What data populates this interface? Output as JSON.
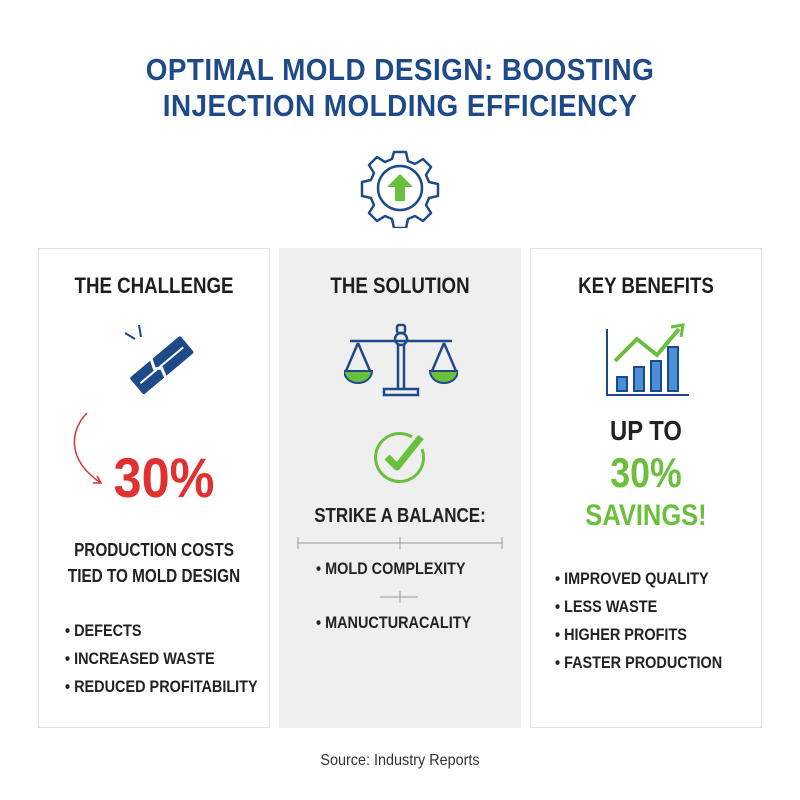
{
  "title": {
    "line1": "OPTIMAL MOLD DESIGN: BOOSTING",
    "line2": "INJECTION MOLDING EFFICIENCY"
  },
  "icons": {
    "header": "gear-up-arrow-icon",
    "challenge": "broken-mold-icon",
    "solution": "balance-scale-icon",
    "solution_check": "check-circle-icon",
    "benefits": "bar-chart-growth-icon"
  },
  "colors": {
    "title": "#1f4a8a",
    "red": "#e03030",
    "green": "#6abf3c",
    "solution_bg": "#efefef"
  },
  "challenge": {
    "heading": "THE CHALLENGE",
    "stat": "30%",
    "desc1": "PRODUCTION COSTS",
    "desc2": "TIED TO MOLD DESIGN",
    "items": [
      "DEFECTS",
      "INCREASED WASTE",
      "REDUCED PROFITABILITY"
    ]
  },
  "solution": {
    "heading": "THE SOLUTION",
    "subheading": "STRIKE A BALANCE:",
    "items": [
      "MOLD COMPLEXITY",
      "MANUCTURACALITY"
    ]
  },
  "benefits": {
    "heading": "KEY BENEFITS",
    "line1": "UP TO",
    "stat": "30%",
    "line3": "SAVINGS!",
    "items": [
      "IMPROVED QUALITY",
      "LESS WASTE",
      "HIGHER PROFITS",
      "FASTER PRODUCTION"
    ]
  },
  "source": "Source: Industry Reports"
}
